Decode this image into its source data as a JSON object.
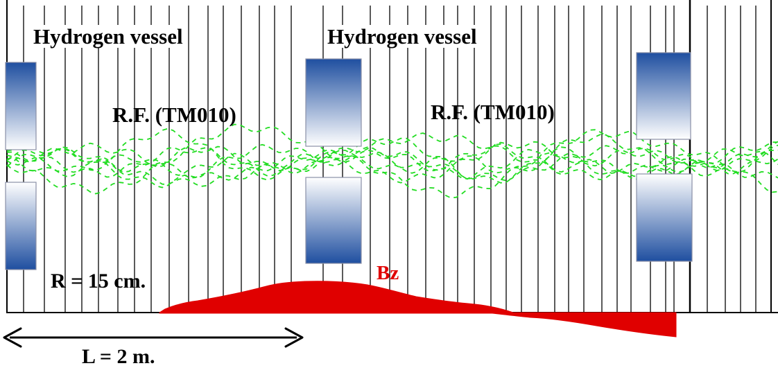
{
  "labels": {
    "vessel_1": "Hydrogen vessel",
    "vessel_2": "Hydrogen vessel",
    "rf_1": "R.F. (TM010)",
    "rf_2": "R.F. (TM010)",
    "radius": "R = 15 cm.",
    "length": "L = 2 m.",
    "bz": "Bz"
  },
  "colors": {
    "bz_field": "#e00000",
    "beam_trajectories": "#22dd22",
    "coil_dark": "#1f4fa0",
    "coil_light": "#ffffff",
    "frame": "#000000"
  }
}
